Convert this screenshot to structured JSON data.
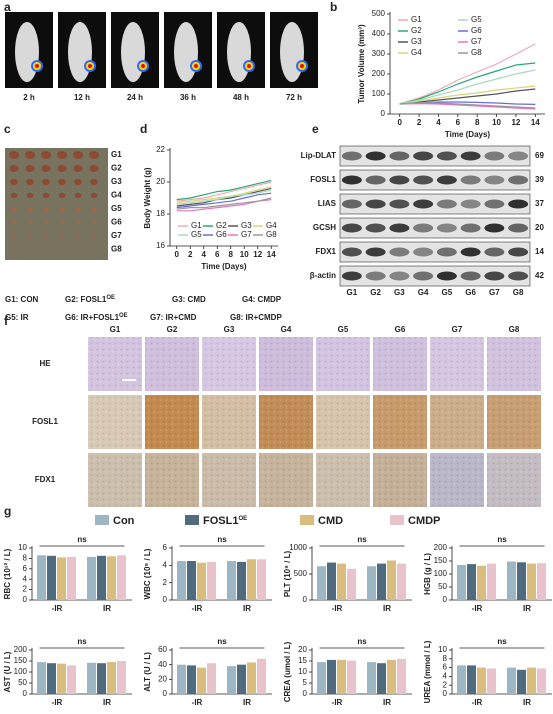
{
  "panel_labels": [
    "a",
    "b",
    "c",
    "d",
    "e",
    "f",
    "g"
  ],
  "panel_a": {
    "times": [
      "2 h",
      "12 h",
      "24 h",
      "36 h",
      "48 h",
      "72 h"
    ]
  },
  "panel_c": {
    "groups": [
      "G1",
      "G2",
      "G3",
      "G4",
      "G5",
      "G6",
      "G7",
      "G8"
    ]
  },
  "group_key": [
    {
      "text": "G1: CON"
    },
    {
      "text": "G2: FOSL1",
      "sup": "OE"
    },
    {
      "text": "G3: CMD"
    },
    {
      "text": "G4: CMDP"
    },
    {
      "text": "G5: IR"
    },
    {
      "text": "G6: IR+FOSL1",
      "sup": "OE"
    },
    {
      "text": "G7: IR+CMD"
    },
    {
      "text": "G8: IR+CMDP"
    }
  ],
  "panel_e": {
    "proteins": [
      "Lip-DLAT",
      "FOSL1",
      "LIAS",
      "GCSH",
      "FDX1",
      "β-actin"
    ],
    "kda": [
      69,
      39,
      37,
      20,
      14,
      42
    ],
    "lanes": [
      "G1",
      "G2",
      "G3",
      "G4",
      "G5",
      "G6",
      "G7",
      "G8"
    ]
  },
  "panel_f": {
    "stains": [
      "HE",
      "FOSL1",
      "FDX1"
    ],
    "groups": [
      "G1",
      "G2",
      "G3",
      "G4",
      "G5",
      "G6",
      "G7",
      "G8"
    ]
  },
  "panel_g_legend": [
    {
      "name": "Con",
      "color": "#9cb6c4"
    },
    {
      "name": "FOSL1",
      "sup": "OE",
      "color": "#4f6b7d"
    },
    {
      "name": "CMD",
      "color": "#d9bd7e"
    },
    {
      "name": "CMDP",
      "color": "#e9c3cb"
    }
  ],
  "chart_data": [
    {
      "type": "line",
      "ylabel": "Tumor Volume (mm³)",
      "xlabel": "Time (Days)",
      "x": [
        0,
        2,
        4,
        6,
        8,
        10,
        12,
        14
      ],
      "xlim": [
        -1,
        15
      ],
      "xticks": [
        0,
        2,
        4,
        6,
        8,
        10,
        12,
        14
      ],
      "ylim": [
        0,
        500
      ],
      "yticks": [
        0,
        100,
        200,
        300,
        400,
        500
      ],
      "series": [
        {
          "name": "G1",
          "color": "#f2a7b8",
          "values": [
            50,
            80,
            120,
            170,
            210,
            250,
            300,
            350
          ]
        },
        {
          "name": "G2",
          "color": "#2aa876",
          "values": [
            50,
            75,
            110,
            150,
            185,
            215,
            245,
            255
          ]
        },
        {
          "name": "G3",
          "color": "#555555",
          "values": [
            50,
            60,
            70,
            80,
            90,
            100,
            115,
            125
          ]
        },
        {
          "name": "G4",
          "color": "#d6d67a",
          "values": [
            50,
            65,
            80,
            95,
            105,
            120,
            130,
            140
          ]
        },
        {
          "name": "G5",
          "color": "#a8dcb8",
          "values": [
            50,
            70,
            95,
            120,
            150,
            175,
            200,
            220
          ]
        },
        {
          "name": "G6",
          "color": "#6b6bd6",
          "values": [
            50,
            55,
            60,
            60,
            58,
            55,
            50,
            48
          ]
        },
        {
          "name": "G7",
          "color": "#e377c2",
          "values": [
            50,
            52,
            50,
            45,
            40,
            35,
            30,
            25
          ]
        },
        {
          "name": "G8",
          "color": "#999999",
          "values": [
            50,
            55,
            55,
            50,
            45,
            40,
            35,
            30
          ]
        }
      ]
    },
    {
      "type": "line",
      "ylabel": "Body Weight (g)",
      "xlabel": "Time (Days)",
      "x": [
        0,
        2,
        4,
        6,
        8,
        10,
        12,
        14
      ],
      "xlim": [
        -1,
        15
      ],
      "xticks": [
        0,
        2,
        4,
        6,
        8,
        10,
        12,
        14
      ],
      "ylim": [
        16,
        22
      ],
      "yticks": [
        16,
        18,
        20,
        22
      ],
      "series": [
        {
          "name": "G1",
          "color": "#f2a7b8",
          "values": [
            18.8,
            18.9,
            19.0,
            19.2,
            19.4,
            19.6,
            19.8,
            20.0
          ]
        },
        {
          "name": "G2",
          "color": "#2aa876",
          "values": [
            18.9,
            19.0,
            19.2,
            19.4,
            19.5,
            19.7,
            19.9,
            20.1
          ]
        },
        {
          "name": "G3",
          "color": "#555555",
          "values": [
            18.5,
            18.6,
            18.7,
            18.9,
            19.0,
            19.2,
            19.4,
            19.6
          ]
        },
        {
          "name": "G4",
          "color": "#d6d67a",
          "values": [
            18.7,
            18.8,
            18.9,
            19.0,
            19.1,
            19.3,
            19.5,
            19.7
          ]
        },
        {
          "name": "G5",
          "color": "#a8dcb8",
          "values": [
            18.6,
            18.7,
            18.8,
            18.9,
            19.1,
            19.2,
            19.3,
            19.5
          ]
        },
        {
          "name": "G6",
          "color": "#6b6bd6",
          "values": [
            18.4,
            18.5,
            18.6,
            18.7,
            18.8,
            19.0,
            19.2,
            19.3
          ]
        },
        {
          "name": "G7",
          "color": "#e377c2",
          "values": [
            18.2,
            18.2,
            18.3,
            18.4,
            18.5,
            18.6,
            18.8,
            18.9
          ]
        },
        {
          "name": "G8",
          "color": "#999999",
          "values": [
            18.3,
            18.4,
            18.4,
            18.5,
            18.6,
            18.7,
            18.8,
            19.0
          ]
        }
      ]
    },
    {
      "type": "bar",
      "ylabel": "RBC (10¹² / L)",
      "annotation": "ns",
      "categories": [
        "-IR",
        "IR"
      ],
      "ylim": [
        0,
        10
      ],
      "yticks": [
        0,
        2,
        4,
        6,
        8,
        10
      ],
      "series": [
        {
          "values": [
            8.6,
            8.3
          ]
        },
        {
          "values": [
            8.5,
            8.5
          ]
        },
        {
          "values": [
            8.2,
            8.4
          ]
        },
        {
          "values": [
            8.3,
            8.6
          ]
        }
      ]
    },
    {
      "type": "bar",
      "ylabel": "WBC (10⁹ / L)",
      "annotation": "ns",
      "categories": [
        "-IR",
        "IR"
      ],
      "ylim": [
        0,
        6
      ],
      "yticks": [
        0,
        2,
        4,
        6
      ],
      "series": [
        {
          "values": [
            4.5,
            4.5
          ]
        },
        {
          "values": [
            4.5,
            4.4
          ]
        },
        {
          "values": [
            4.3,
            4.7
          ]
        },
        {
          "values": [
            4.4,
            4.7
          ]
        }
      ]
    },
    {
      "type": "bar",
      "ylabel": "PLT (10⁹ / L)",
      "annotation": "ns",
      "categories": [
        "-IR",
        "IR"
      ],
      "ylim": [
        0,
        1000
      ],
      "yticks": [
        0,
        500,
        1000
      ],
      "series": [
        {
          "values": [
            650,
            650
          ]
        },
        {
          "values": [
            720,
            700
          ]
        },
        {
          "values": [
            700,
            760
          ]
        },
        {
          "values": [
            600,
            700
          ]
        }
      ]
    },
    {
      "type": "bar",
      "ylabel": "HGB (g / L)",
      "annotation": "ns",
      "categories": [
        "-IR",
        "IR"
      ],
      "ylim": [
        0,
        200
      ],
      "yticks": [
        0,
        50,
        100,
        150,
        200
      ],
      "series": [
        {
          "values": [
            135,
            148
          ]
        },
        {
          "values": [
            138,
            145
          ]
        },
        {
          "values": [
            132,
            140
          ]
        },
        {
          "values": [
            140,
            142
          ]
        }
      ]
    },
    {
      "type": "bar",
      "ylabel": "AST (U / L)",
      "annotation": "ns",
      "categories": [
        "-IR",
        "IR"
      ],
      "ylim": [
        0,
        200
      ],
      "yticks": [
        0,
        50,
        100,
        150,
        200
      ],
      "series": [
        {
          "values": [
            145,
            142
          ]
        },
        {
          "values": [
            140,
            140
          ]
        },
        {
          "values": [
            138,
            145
          ]
        },
        {
          "values": [
            130,
            150
          ]
        }
      ]
    },
    {
      "type": "bar",
      "ylabel": "ALT (U / L)",
      "annotation": "ns",
      "categories": [
        "-IR",
        "IR"
      ],
      "ylim": [
        0,
        60
      ],
      "yticks": [
        0,
        20,
        40,
        60
      ],
      "series": [
        {
          "values": [
            40,
            38
          ]
        },
        {
          "values": [
            39,
            40
          ]
        },
        {
          "values": [
            36,
            43
          ]
        },
        {
          "values": [
            42,
            48
          ]
        }
      ]
    },
    {
      "type": "bar",
      "ylabel": "CREA (umol / L)",
      "annotation": "ns",
      "categories": [
        "-IR",
        "IR"
      ],
      "ylim": [
        0,
        20
      ],
      "yticks": [
        0,
        5,
        10,
        15,
        20
      ],
      "series": [
        {
          "values": [
            14.5,
            14.5
          ]
        },
        {
          "values": [
            15.5,
            14
          ]
        },
        {
          "values": [
            15.5,
            15.5
          ]
        },
        {
          "values": [
            15.2,
            16
          ]
        }
      ]
    },
    {
      "type": "bar",
      "ylabel": "UREA (mmol / L)",
      "annotation": "ns",
      "categories": [
        "-IR",
        "IR"
      ],
      "ylim": [
        0,
        10
      ],
      "yticks": [
        0,
        2,
        4,
        6,
        8,
        10
      ],
      "series": [
        {
          "values": [
            6.5,
            6
          ]
        },
        {
          "values": [
            6.5,
            5.5
          ]
        },
        {
          "values": [
            6,
            6
          ]
        },
        {
          "values": [
            5.8,
            5.8
          ]
        }
      ]
    }
  ]
}
